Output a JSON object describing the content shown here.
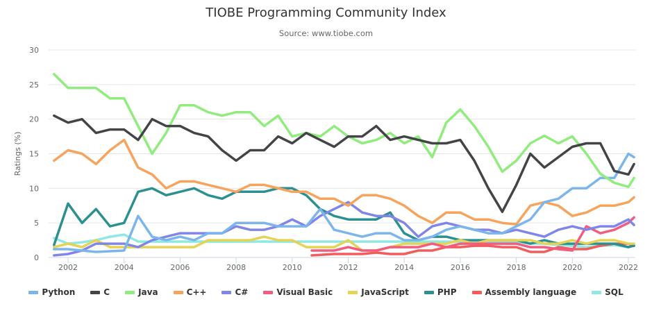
{
  "chart_data": {
    "type": "line",
    "title": "TIOBE Programming Community Index",
    "subtitle": "Source: www.tiobe.com",
    "xlabel": "",
    "ylabel": "Ratings (%)",
    "ylim": [
      0,
      30
    ],
    "yticks": [
      "0",
      "5",
      "10",
      "15",
      "20",
      "25",
      "30"
    ],
    "xticks": [
      "2002",
      "2004",
      "2006",
      "2008",
      "2010",
      "2012",
      "2014",
      "2016",
      "2018",
      "2020",
      "2022"
    ],
    "xlim": [
      2001.5,
      2022.2
    ],
    "grid": true,
    "legend": "bottom",
    "x": [
      2001.5,
      2002,
      2002.5,
      2003,
      2003.5,
      2004,
      2004.5,
      2005,
      2005.5,
      2006,
      2006.5,
      2007,
      2007.5,
      2008,
      2008.5,
      2009,
      2009.5,
      2010,
      2010.5,
      2011,
      2011.5,
      2012,
      2012.5,
      2013,
      2013.5,
      2014,
      2014.5,
      2015,
      2015.5,
      2016,
      2016.5,
      2017,
      2017.5,
      2018,
      2018.5,
      2019,
      2019.5,
      2020,
      2020.5,
      2021,
      2021.5,
      2022,
      2022.2
    ],
    "series": [
      {
        "name": "Python",
        "color": "#7cb5ec",
        "values": [
          1.2,
          1.2,
          1,
          0.8,
          0.9,
          1,
          6,
          3,
          2.5,
          3,
          2.5,
          3.5,
          3.5,
          5,
          5,
          5,
          4.5,
          4.5,
          4.5,
          7,
          4,
          3.5,
          3,
          3.5,
          3.5,
          2.5,
          2.5,
          3,
          4,
          4.5,
          4,
          3.5,
          3.5,
          4.5,
          5.5,
          8,
          8.5,
          10,
          10,
          11.5,
          11.5,
          15,
          14.5
        ]
      },
      {
        "name": "C",
        "color": "#434348",
        "values": [
          20.5,
          19.5,
          20,
          18,
          18.5,
          18.5,
          17,
          20,
          19,
          19,
          18,
          17.5,
          15.5,
          14,
          15.5,
          15.5,
          17.5,
          16.5,
          18,
          17,
          16,
          17.5,
          17.5,
          19,
          17,
          17.5,
          17,
          16.5,
          16.5,
          17,
          14,
          10,
          6.6,
          10.5,
          15,
          13,
          14.5,
          16,
          16.5,
          16.5,
          12.5,
          12,
          13.5
        ]
      },
      {
        "name": "Java",
        "color": "#90ed7d",
        "values": [
          26.5,
          24.5,
          24.5,
          24.5,
          23,
          23,
          19,
          15,
          18,
          22,
          22,
          21,
          20.5,
          21,
          21,
          19,
          20.5,
          17.5,
          18,
          17.5,
          19,
          17.5,
          16.5,
          17,
          18,
          16.5,
          17.5,
          14.5,
          19.5,
          21.4,
          19,
          16,
          12.4,
          14,
          16.5,
          17.6,
          16.5,
          17.5,
          15,
          12.1,
          10.8,
          10.2,
          11.5
        ]
      },
      {
        "name": "C++",
        "color": "#f7a35c",
        "values": [
          14,
          15.5,
          15,
          13.5,
          15.5,
          17,
          13,
          12,
          10,
          11,
          11,
          10.5,
          10,
          9.5,
          10.5,
          10.5,
          10,
          9.5,
          9.5,
          8.5,
          8.5,
          7.5,
          9,
          9,
          8.5,
          7.5,
          6,
          5,
          6.5,
          6.5,
          5.5,
          5.5,
          5,
          4.8,
          7.5,
          8,
          7.5,
          6,
          6.5,
          7.5,
          7.5,
          8,
          8.7
        ]
      },
      {
        "name": "C#",
        "color": "#8085e9",
        "values": [
          0.3,
          0.5,
          1,
          2,
          2,
          2,
          1.5,
          2.5,
          3,
          3.5,
          3.5,
          3.5,
          3.5,
          4.5,
          4,
          4,
          4.5,
          5.5,
          4.5,
          6,
          7,
          8,
          6.5,
          6,
          6,
          5,
          3,
          4.5,
          5,
          4.5,
          4,
          4,
          3.5,
          4,
          3.5,
          3,
          4,
          4.5,
          4,
          4.5,
          4.5,
          5.5,
          4.7
        ]
      },
      {
        "name": "Visual Basic",
        "color": "#f15c80",
        "values": [
          null,
          null,
          null,
          null,
          null,
          null,
          null,
          null,
          null,
          null,
          null,
          null,
          null,
          null,
          null,
          null,
          null,
          null,
          null,
          1,
          1,
          1.5,
          1,
          1,
          1.5,
          1.5,
          1.5,
          2,
          1.5,
          2,
          2,
          2,
          2,
          2,
          1.5,
          1.5,
          1.2,
          1,
          4.5,
          3.5,
          4,
          5,
          5.8
        ]
      },
      {
        "name": "JavaScript",
        "color": "#e4d354",
        "values": [
          1.5,
          2,
          1.5,
          2.5,
          1.5,
          1.5,
          1.5,
          1.5,
          1.5,
          1.5,
          1.5,
          2.5,
          2.5,
          2.5,
          2.5,
          3,
          2.5,
          2.5,
          1.5,
          1.5,
          1.5,
          2.5,
          1,
          1,
          1.5,
          2,
          2,
          2,
          2,
          2.5,
          2,
          2.5,
          2.5,
          2.5,
          2.5,
          2,
          2,
          2.5,
          2,
          2.5,
          2.5,
          2,
          2
        ]
      },
      {
        "name": "PHP",
        "color": "#2b908f",
        "values": [
          1.8,
          7.8,
          5,
          7,
          4.5,
          5,
          9.5,
          10,
          9,
          9.5,
          10,
          9,
          8.5,
          9.5,
          9.5,
          9.5,
          10,
          10,
          9,
          7,
          6,
          5.5,
          5.5,
          5.5,
          6.5,
          3.5,
          2.5,
          3,
          3,
          2.5,
          2.5,
          2.5,
          2.5,
          2.5,
          2,
          2.5,
          2,
          2,
          2,
          2,
          2,
          1.5,
          1.7
        ]
      },
      {
        "name": "Assembly language",
        "color": "#f45b5b",
        "values": [
          null,
          null,
          null,
          null,
          null,
          null,
          null,
          null,
          null,
          null,
          null,
          null,
          null,
          null,
          null,
          null,
          null,
          null,
          null,
          0.3,
          0.5,
          0.5,
          0.5,
          0.7,
          0.5,
          0.5,
          1,
          1,
          1.5,
          1.5,
          1.7,
          1.7,
          1.5,
          1.5,
          0.8,
          0.8,
          1.5,
          1.2,
          1.2,
          1.7,
          2,
          2,
          1.7
        ]
      },
      {
        "name": "SQL",
        "color": "#91e8e1",
        "values": [
          2.8,
          2,
          2.2,
          2.5,
          3,
          3.3,
          2.3,
          2.3,
          2.3,
          2.3,
          2.3,
          2.3,
          2.3,
          2.3,
          2.3,
          2.3,
          2.3,
          2.3,
          2.3,
          2.3,
          2.3,
          2.3,
          2.3,
          2.3,
          2.3,
          2.3,
          2.3,
          2.3,
          2.3,
          2.3,
          2.3,
          2.3,
          2.3,
          2.3,
          2,
          2,
          1.8,
          1.7,
          1.5,
          1.7,
          1.8,
          1.5,
          1.8
        ]
      }
    ]
  }
}
